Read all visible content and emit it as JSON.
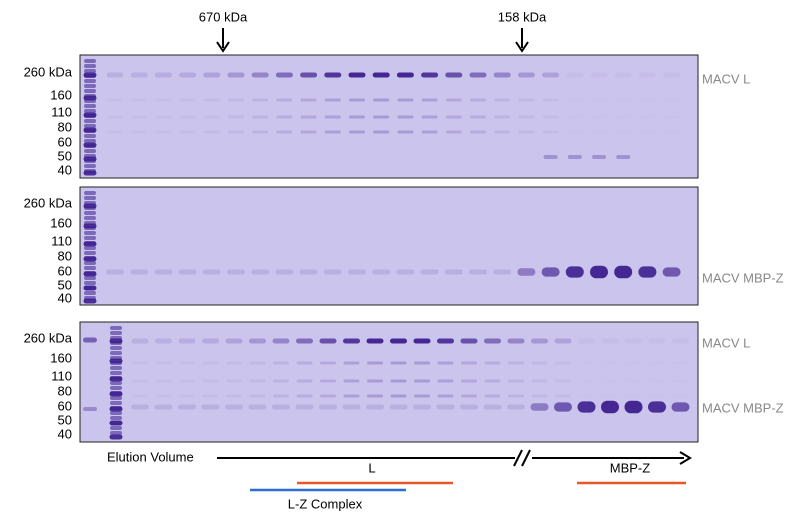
{
  "top_markers": [
    {
      "label": "670 kDa"
    },
    {
      "label": "158 kDa"
    }
  ],
  "panels": [
    {
      "ladder": [
        "260 kDa",
        "160",
        "110",
        "80",
        "60",
        "50",
        "40"
      ],
      "band_labels": [
        "MACV L"
      ]
    },
    {
      "ladder": [
        "260 kDa",
        "160",
        "110",
        "80",
        "60",
        "50",
        "40"
      ],
      "band_labels": [
        "MACV MBP-Z"
      ]
    },
    {
      "ladder": [
        "260 kDa",
        "160",
        "110",
        "80",
        "60",
        "50",
        "40"
      ],
      "band_labels": [
        "MACV L",
        "MACV MBP-Z"
      ]
    }
  ],
  "axis": {
    "label": "Elution Volume"
  },
  "ranges": [
    {
      "label": "L"
    },
    {
      "label": "L-Z Complex"
    },
    {
      "label": "MBP-Z"
    }
  ]
}
